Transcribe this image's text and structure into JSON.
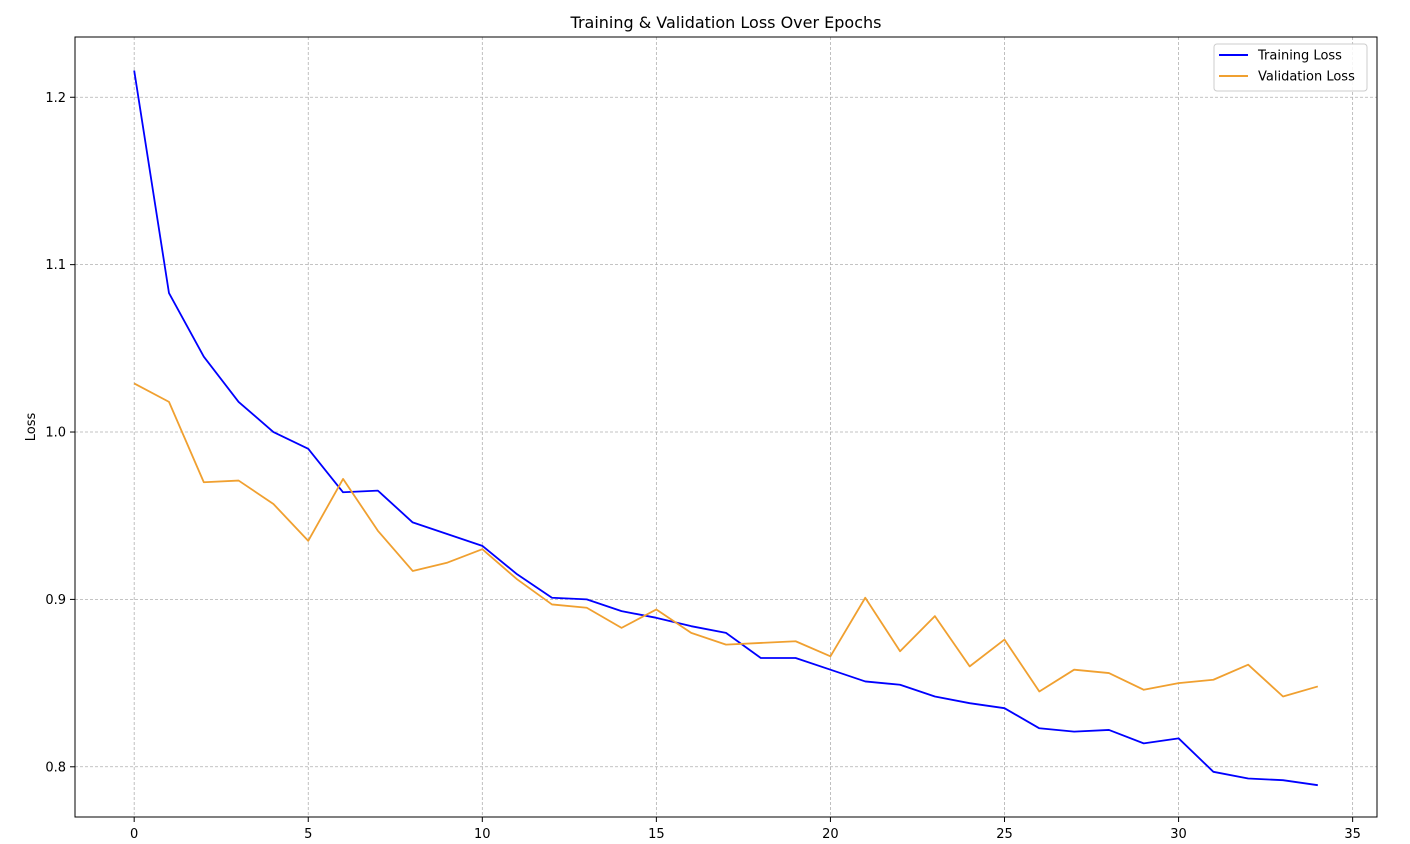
{
  "chart_data": {
    "type": "line",
    "title": "Training & Validation Loss Over Epochs",
    "xlabel": "",
    "ylabel": "Loss",
    "xlim": [
      -1.7,
      35.7
    ],
    "ylim": [
      0.77,
      1.236
    ],
    "xticks": [
      0,
      5,
      10,
      15,
      20,
      25,
      30,
      35
    ],
    "yticks": [
      0.8,
      0.9,
      1.0,
      1.1,
      1.2
    ],
    "ytick_labels": [
      "0.8",
      "0.9",
      "1.0",
      "1.1",
      "1.2"
    ],
    "grid": true,
    "legend_position": "top-right",
    "x": [
      0,
      1,
      2,
      3,
      4,
      5,
      6,
      7,
      8,
      9,
      10,
      11,
      12,
      13,
      14,
      15,
      16,
      17,
      18,
      19,
      20,
      21,
      22,
      23,
      24,
      25,
      26,
      27,
      28,
      29,
      30,
      31,
      32,
      33,
      34
    ],
    "series": [
      {
        "name": "Training Loss",
        "color": "#0000ff",
        "values": [
          1.216,
          1.083,
          1.045,
          1.018,
          1.0,
          0.99,
          0.964,
          0.965,
          0.946,
          0.939,
          0.932,
          0.915,
          0.901,
          0.9,
          0.893,
          0.889,
          0.884,
          0.88,
          0.865,
          0.865,
          0.858,
          0.851,
          0.849,
          0.842,
          0.838,
          0.835,
          0.823,
          0.821,
          0.822,
          0.814,
          0.817,
          0.797,
          0.793,
          0.792,
          0.789
        ]
      },
      {
        "name": "Validation Loss",
        "color": "#f0a030",
        "values": [
          1.029,
          1.018,
          0.97,
          0.971,
          0.957,
          0.935,
          0.972,
          0.941,
          0.917,
          0.922,
          0.93,
          0.912,
          0.897,
          0.895,
          0.883,
          0.894,
          0.88,
          0.873,
          0.874,
          0.875,
          0.866,
          0.901,
          0.869,
          0.89,
          0.86,
          0.876,
          0.845,
          0.858,
          0.856,
          0.846,
          0.85,
          0.852,
          0.861,
          0.842,
          0.848
        ]
      }
    ]
  }
}
